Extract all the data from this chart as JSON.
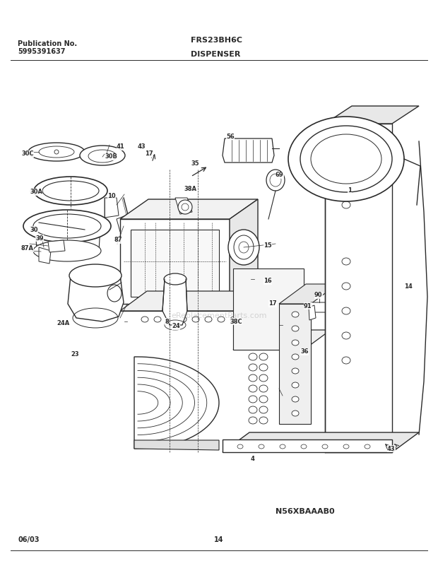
{
  "title": "FRS23BH6C",
  "subtitle": "DISPENSER",
  "pub_label": "Publication No.",
  "pub_number": "5995391637",
  "date_code": "06/03",
  "page_number": "14",
  "diagram_id": "N56XBAAAB0",
  "bg_color": "#ffffff",
  "line_color": "#2a2a2a",
  "text_color": "#2a2a2a",
  "watermark": "eReplacementParts.com"
}
